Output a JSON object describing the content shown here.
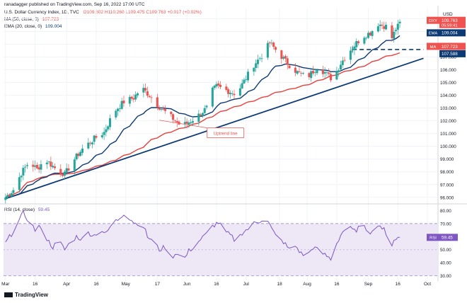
{
  "header": {
    "published": "ranadagger published on TradingView.com, Sep 16, 2022 17:00 UTC",
    "title_line": "U.S. Dollar Currency Index, 1D, TVC",
    "ohlc": "O109.802  H110.260  L109.475  C109.763  +0.017 (+0.02%)",
    "ma_line": "MA (50, close, 0)",
    "ma_value": "107.723",
    "ema_line": "EMA (20, close, 0)",
    "ema_value": "109.004",
    "rsi_line": "RSI (14, close)",
    "rsi_value": "59.45"
  },
  "watermark": "TradingView",
  "colors": {
    "up": "#26a69a",
    "down": "#ef5350",
    "ema": "#0c3a75",
    "ma": "#e8413c",
    "trend": "#0c3a75",
    "rsi": "#7e57c2",
    "rsi_band": "#ede7f6"
  },
  "chart_data": [
    {
      "type": "candlestick",
      "title": "U.S. Dollar Currency Index, 1D, TVC",
      "currency": "USD",
      "y_ticks": [
        "96.000",
        "97.000",
        "98.000",
        "99.000",
        "100.000",
        "101.000",
        "102.000",
        "103.000",
        "104.000",
        "105.000",
        "106.000",
        "107.000",
        "108.000",
        "109.000",
        "110.000"
      ],
      "ylim": [
        95.6,
        110.8
      ],
      "x_ticks": [
        "Mar",
        "16",
        "Apr",
        "16",
        "May",
        "17",
        "Jun",
        "16",
        "Jul",
        "18",
        "Aug",
        "16",
        "Sep",
        "16",
        "Oct"
      ],
      "x_tick_days": [
        0,
        15,
        31,
        46,
        61,
        77,
        92,
        107,
        122,
        139,
        153,
        168,
        184,
        199,
        214
      ],
      "xlim": [
        -1,
        219
      ],
      "close_anchors": [
        {
          "day": 0,
          "close": 96.0
        },
        {
          "day": 4,
          "close": 96.6
        },
        {
          "day": 8,
          "close": 97.9
        },
        {
          "day": 12,
          "close": 98.8
        },
        {
          "day": 16,
          "close": 98.2
        },
        {
          "day": 20,
          "close": 99.0
        },
        {
          "day": 25,
          "close": 98.3
        },
        {
          "day": 30,
          "close": 97.8
        },
        {
          "day": 34,
          "close": 98.8
        },
        {
          "day": 39,
          "close": 99.8
        },
        {
          "day": 45,
          "close": 100.6
        },
        {
          "day": 50,
          "close": 101.1
        },
        {
          "day": 55,
          "close": 102.7
        },
        {
          "day": 60,
          "close": 103.5
        },
        {
          "day": 65,
          "close": 103.8
        },
        {
          "day": 69,
          "close": 104.6
        },
        {
          "day": 73,
          "close": 104.0
        },
        {
          "day": 78,
          "close": 103.1
        },
        {
          "day": 84,
          "close": 102.3
        },
        {
          "day": 89,
          "close": 101.6
        },
        {
          "day": 92,
          "close": 101.8
        },
        {
          "day": 97,
          "close": 102.3
        },
        {
          "day": 102,
          "close": 103.0
        },
        {
          "day": 104,
          "close": 104.2
        },
        {
          "day": 107,
          "close": 104.7
        },
        {
          "day": 112,
          "close": 104.4
        },
        {
          "day": 117,
          "close": 104.1
        },
        {
          "day": 121,
          "close": 105.1
        },
        {
          "day": 126,
          "close": 106.4
        },
        {
          "day": 130,
          "close": 107.1
        },
        {
          "day": 134,
          "close": 108.1
        },
        {
          "day": 138,
          "close": 107.4
        },
        {
          "day": 143,
          "close": 106.5
        },
        {
          "day": 148,
          "close": 105.8
        },
        {
          "day": 153,
          "close": 105.4
        },
        {
          "day": 158,
          "close": 106.2
        },
        {
          "day": 162,
          "close": 105.8
        },
        {
          "day": 166,
          "close": 105.2
        },
        {
          "day": 170,
          "close": 106.5
        },
        {
          "day": 174,
          "close": 107.4
        },
        {
          "day": 178,
          "close": 108.1
        },
        {
          "day": 181,
          "close": 108.6
        },
        {
          "day": 185,
          "close": 108.9
        },
        {
          "day": 189,
          "close": 109.6
        },
        {
          "day": 193,
          "close": 109.4
        },
        {
          "day": 196,
          "close": 108.5
        },
        {
          "day": 198,
          "close": 109.2
        },
        {
          "day": 201,
          "close": 109.763
        }
      ],
      "last_close": "109.763",
      "countdown": "05:59:41",
      "ema20_value": "109.004",
      "ma50_value": "107.723",
      "support_level": "107.588",
      "price_labels": [
        {
          "tag": "DXY",
          "value": "109.763",
          "color": "#ef5350"
        },
        {
          "tag": "EMA",
          "value": "109.004",
          "color": "#0c3a75"
        },
        {
          "tag": "MA",
          "value": "107.723",
          "color": "#ef5350"
        },
        {
          "tag": "",
          "value": "107.588",
          "color": "#0c3a75"
        }
      ],
      "trend_line": {
        "start_day": 0,
        "start_price": 95.9,
        "end_day": 212,
        "end_price": 106.9
      },
      "support_line": {
        "start_day": 176,
        "end_day": 212,
        "price": 107.588
      },
      "annotation": "Uptrend line"
    },
    {
      "type": "line",
      "title": "RSI (14, close)",
      "y_ticks": [
        "30.00",
        "40.00",
        "50.00",
        "60.00",
        "70.00",
        "80.00"
      ],
      "ylim": [
        26,
        84
      ],
      "band": [
        30,
        70
      ],
      "midline": 50,
      "rsi_anchors": [
        {
          "day": 0,
          "rsi": 55
        },
        {
          "day": 3,
          "rsi": 62
        },
        {
          "day": 6,
          "rsi": 70
        },
        {
          "day": 9,
          "rsi": 78
        },
        {
          "day": 12,
          "rsi": 72
        },
        {
          "day": 15,
          "rsi": 65
        },
        {
          "day": 18,
          "rsi": 68
        },
        {
          "day": 21,
          "rsi": 58
        },
        {
          "day": 24,
          "rsi": 52
        },
        {
          "day": 27,
          "rsi": 57
        },
        {
          "day": 30,
          "rsi": 50
        },
        {
          "day": 33,
          "rsi": 56
        },
        {
          "day": 36,
          "rsi": 60
        },
        {
          "day": 39,
          "rsi": 58
        },
        {
          "day": 42,
          "rsi": 63
        },
        {
          "day": 45,
          "rsi": 61
        },
        {
          "day": 48,
          "rsi": 66
        },
        {
          "day": 51,
          "rsi": 62
        },
        {
          "day": 54,
          "rsi": 70
        },
        {
          "day": 57,
          "rsi": 73
        },
        {
          "day": 60,
          "rsi": 78
        },
        {
          "day": 63,
          "rsi": 74
        },
        {
          "day": 66,
          "rsi": 70
        },
        {
          "day": 69,
          "rsi": 72
        },
        {
          "day": 72,
          "rsi": 60
        },
        {
          "day": 75,
          "rsi": 56
        },
        {
          "day": 78,
          "rsi": 50
        },
        {
          "day": 81,
          "rsi": 52
        },
        {
          "day": 84,
          "rsi": 44
        },
        {
          "day": 87,
          "rsi": 48
        },
        {
          "day": 90,
          "rsi": 41
        },
        {
          "day": 93,
          "rsi": 49
        },
        {
          "day": 96,
          "rsi": 53
        },
        {
          "day": 99,
          "rsi": 58
        },
        {
          "day": 102,
          "rsi": 62
        },
        {
          "day": 105,
          "rsi": 68
        },
        {
          "day": 108,
          "rsi": 71
        },
        {
          "day": 111,
          "rsi": 64
        },
        {
          "day": 114,
          "rsi": 61
        },
        {
          "day": 117,
          "rsi": 56
        },
        {
          "day": 120,
          "rsi": 63
        },
        {
          "day": 123,
          "rsi": 66
        },
        {
          "day": 126,
          "rsi": 70
        },
        {
          "day": 129,
          "rsi": 72
        },
        {
          "day": 132,
          "rsi": 76
        },
        {
          "day": 135,
          "rsi": 66
        },
        {
          "day": 138,
          "rsi": 58
        },
        {
          "day": 141,
          "rsi": 56
        },
        {
          "day": 144,
          "rsi": 50
        },
        {
          "day": 147,
          "rsi": 53
        },
        {
          "day": 150,
          "rsi": 47
        },
        {
          "day": 153,
          "rsi": 45
        },
        {
          "day": 156,
          "rsi": 52
        },
        {
          "day": 159,
          "rsi": 49
        },
        {
          "day": 162,
          "rsi": 46
        },
        {
          "day": 165,
          "rsi": 43
        },
        {
          "day": 168,
          "rsi": 55
        },
        {
          "day": 171,
          "rsi": 64
        },
        {
          "day": 174,
          "rsi": 67
        },
        {
          "day": 177,
          "rsi": 64
        },
        {
          "day": 180,
          "rsi": 68
        },
        {
          "day": 183,
          "rsi": 66
        },
        {
          "day": 186,
          "rsi": 63
        },
        {
          "day": 189,
          "rsi": 70
        },
        {
          "day": 192,
          "rsi": 65
        },
        {
          "day": 195,
          "rsi": 51
        },
        {
          "day": 197,
          "rsi": 58
        },
        {
          "day": 199,
          "rsi": 59
        },
        {
          "day": 201,
          "rsi": 59.45
        }
      ],
      "last_value": "59.45"
    }
  ]
}
